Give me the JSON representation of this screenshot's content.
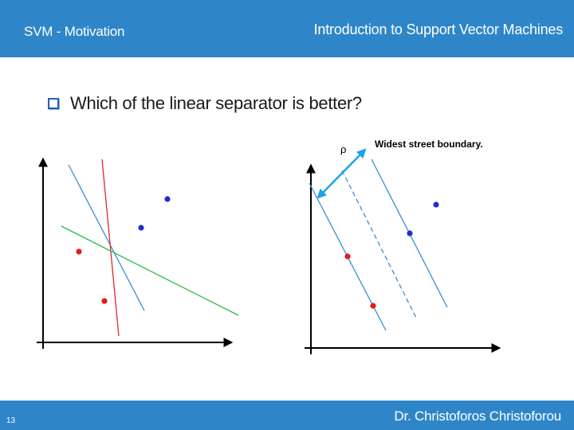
{
  "header": {
    "section": "SVM - Motivation",
    "title": "Introduction to Support Vector Machines"
  },
  "bullet": {
    "text": "Which of the linear separator is better?"
  },
  "right_plot": {
    "annotation": "Widest street boundary.",
    "margin_symbol": "ρ"
  },
  "footer": {
    "page_number": "13",
    "author": "Dr. Christoforos Christoforou"
  },
  "colors": {
    "header_bar": "#2e86c8",
    "class_red": "#e31a1c",
    "class_blue": "#1f2fd0",
    "line_blue": "#3a8fd0",
    "line_red": "#e0282a",
    "line_green": "#2db84a",
    "arrow": "#1aa3e8"
  }
}
